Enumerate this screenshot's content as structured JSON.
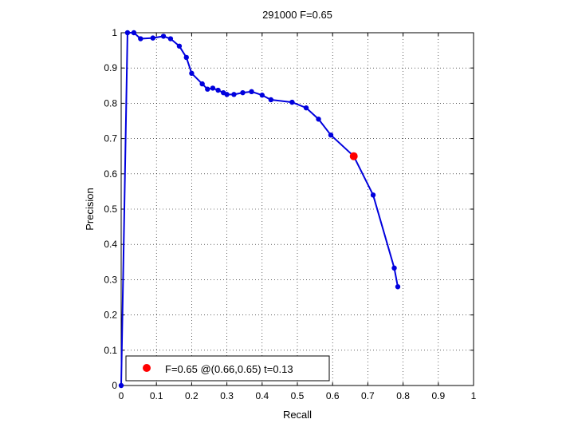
{
  "chart_data": {
    "type": "line",
    "title": "291000 F=0.65",
    "xlabel": "Recall",
    "ylabel": "Precision",
    "xlim": [
      0,
      1
    ],
    "ylim": [
      0,
      1
    ],
    "xticks": [
      "0",
      "0.1",
      "0.2",
      "0.3",
      "0.4",
      "0.5",
      "0.6",
      "0.7",
      "0.8",
      "0.9",
      "1"
    ],
    "yticks": [
      "0",
      "0.1",
      "0.2",
      "0.3",
      "0.4",
      "0.5",
      "0.6",
      "0.7",
      "0.8",
      "0.9",
      "1"
    ],
    "grid": true,
    "legend_position": "bottom-left",
    "line_color": "#0000dd",
    "marker_color": "#0000dd",
    "series": [
      {
        "x": [
          0.0,
          0.018,
          0.036,
          0.055,
          0.09,
          0.12,
          0.14,
          0.165,
          0.185,
          0.2,
          0.23,
          0.245,
          0.26,
          0.275,
          0.29,
          0.3,
          0.32,
          0.345,
          0.37,
          0.4,
          0.425,
          0.485,
          0.525,
          0.56,
          0.595,
          0.66,
          0.715,
          0.775,
          0.785
        ],
        "y": [
          0.0,
          1.0,
          1.0,
          0.983,
          0.985,
          0.99,
          0.983,
          0.962,
          0.93,
          0.885,
          0.855,
          0.84,
          0.843,
          0.837,
          0.83,
          0.825,
          0.825,
          0.83,
          0.833,
          0.823,
          0.81,
          0.803,
          0.787,
          0.755,
          0.71,
          0.65,
          0.54,
          0.333,
          0.28
        ]
      }
    ],
    "best_point": {
      "recall": 0.66,
      "precision": 0.65,
      "color": "#ff0000",
      "legend_label": "F=0.65 @(0.66,0.65) t=0.13"
    }
  }
}
